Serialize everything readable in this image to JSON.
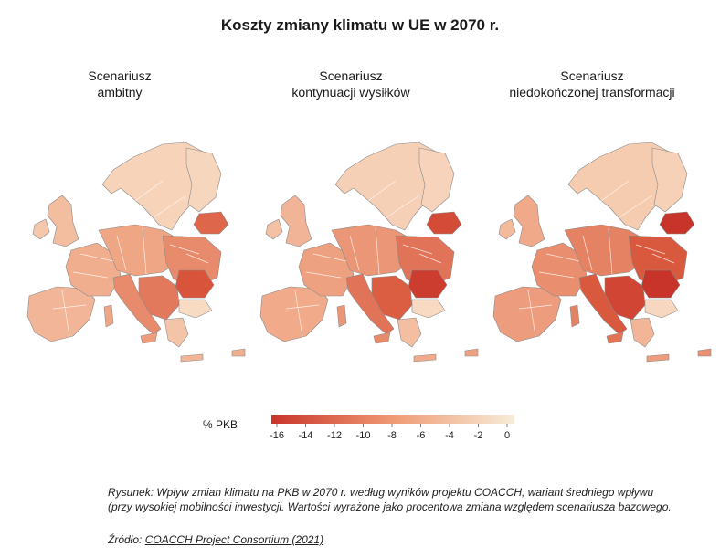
{
  "figure": {
    "title": "Koszty zmiany klimatu w UE w 2070 r.",
    "scenarios": [
      {
        "line1": "Scenariusz",
        "line2": "ambitny",
        "intensity": 0.35
      },
      {
        "line1": "Scenariusz",
        "line2": "kontynuacji wysiłków",
        "intensity": 0.55
      },
      {
        "line1": "Scenariusz",
        "line2": "niedokończonej transformacji",
        "intensity": 0.8
      }
    ],
    "legend": {
      "label": "% PKB",
      "ticks": [
        "-16",
        "-14",
        "-12",
        "-10",
        "-8",
        "-6",
        "-4",
        "-2",
        "0"
      ],
      "colors": {
        "low": "#c8342a",
        "mid": "#ef9a74",
        "high": "#f7ecd8"
      }
    }
  },
  "caption": {
    "text": "Rysunek: Wpływ zmian klimatu na PKB w 2070 r. według wyników projektu COACCH, wariant średniego wpływu (przy wysokiej mobilności inwestycji. Wartości wyrażone jako procentowa zmiana względem scenariusza bazowego.",
    "source_prefix": "Źródło: ",
    "source_link": "COACCH Project Consortium (2021)"
  }
}
